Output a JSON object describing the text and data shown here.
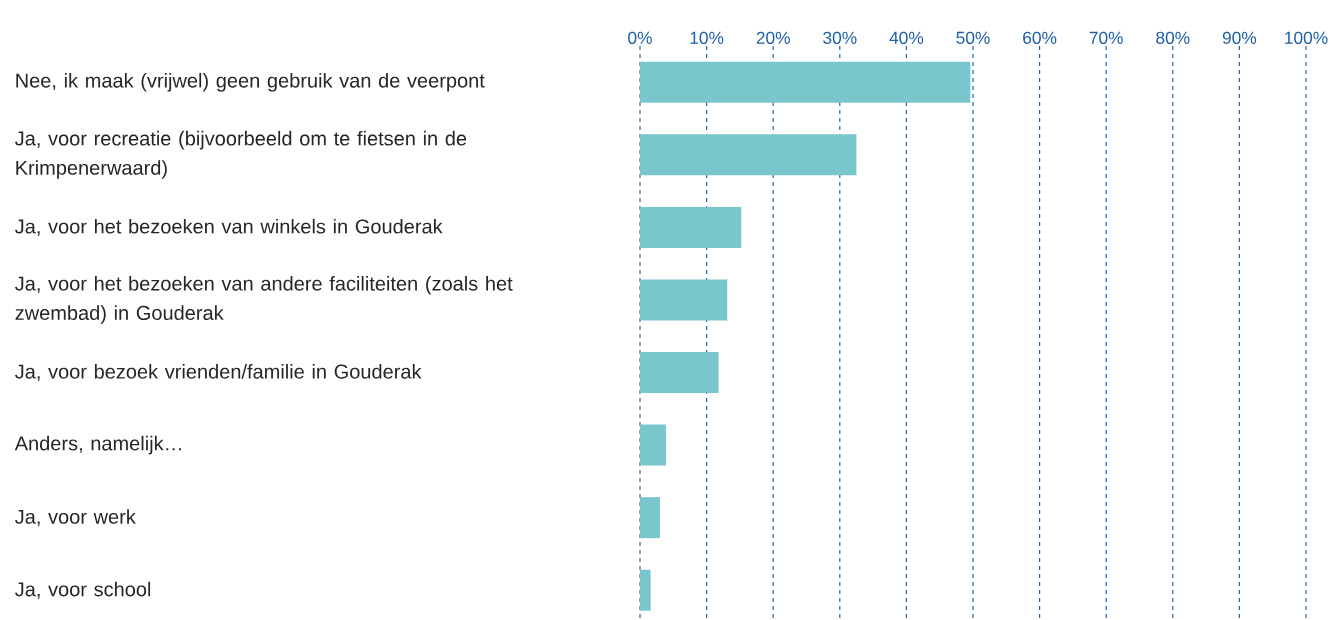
{
  "chart_data": {
    "type": "bar",
    "orientation": "horizontal",
    "categories": [
      "Nee, ik maak (vrijwel) geen gebruik van de veerpont",
      "Ja, voor recreatie (bijvoorbeeld om te fietsen in de Krimpenerwaard)",
      "Ja, voor het bezoeken van winkels in Gouderak",
      "Ja, voor het bezoeken van andere faciliteiten (zoals het zwembad) in Gouderak",
      "Ja, voor bezoek vrienden/familie in Gouderak",
      "Anders, namelijk…",
      "Ja, voor werk",
      "Ja, voor school"
    ],
    "values": [
      49.6,
      32.5,
      15.2,
      13.1,
      11.8,
      3.9,
      3.0,
      1.6
    ],
    "color": "#79c7cc",
    "xlim": [
      0,
      100
    ],
    "xticks": [
      {
        "value": 0,
        "label": "0%"
      },
      {
        "value": 10,
        "label": "10%"
      },
      {
        "value": 20,
        "label": "20%"
      },
      {
        "value": 30,
        "label": "30%"
      },
      {
        "value": 40,
        "label": "40%"
      },
      {
        "value": 50,
        "label": "50%"
      },
      {
        "value": 60,
        "label": "60%"
      },
      {
        "value": 70,
        "label": "70%"
      },
      {
        "value": 80,
        "label": "80%"
      },
      {
        "value": 90,
        "label": "90%"
      },
      {
        "value": 100,
        "label": "100%"
      }
    ],
    "grid": "x"
  }
}
